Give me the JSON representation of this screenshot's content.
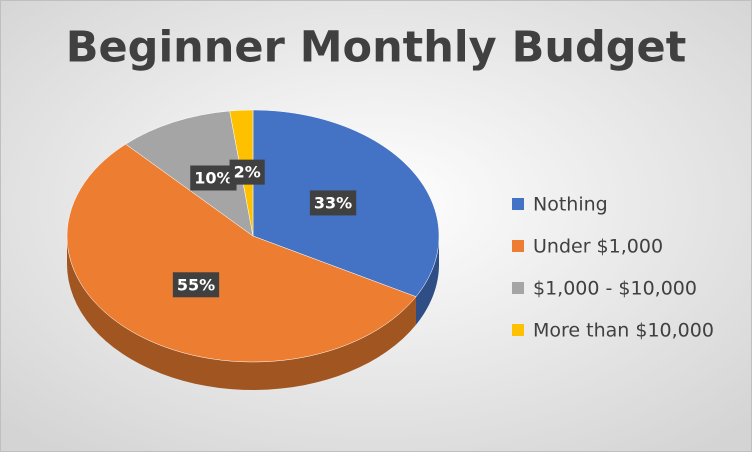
{
  "chart_data": {
    "type": "pie",
    "title": "Beginner Monthly Budget",
    "categories": [
      "Nothing",
      "Under $1,000",
      "$1,000 - $10,000",
      "More than $10,000"
    ],
    "values": [
      33,
      55,
      10,
      2
    ],
    "value_labels": [
      "33%",
      "55%",
      "10%",
      "2%"
    ],
    "colors": [
      "#4472c4",
      "#ed7d31",
      "#a5a5a5",
      "#ffc000"
    ],
    "legend": "right"
  }
}
